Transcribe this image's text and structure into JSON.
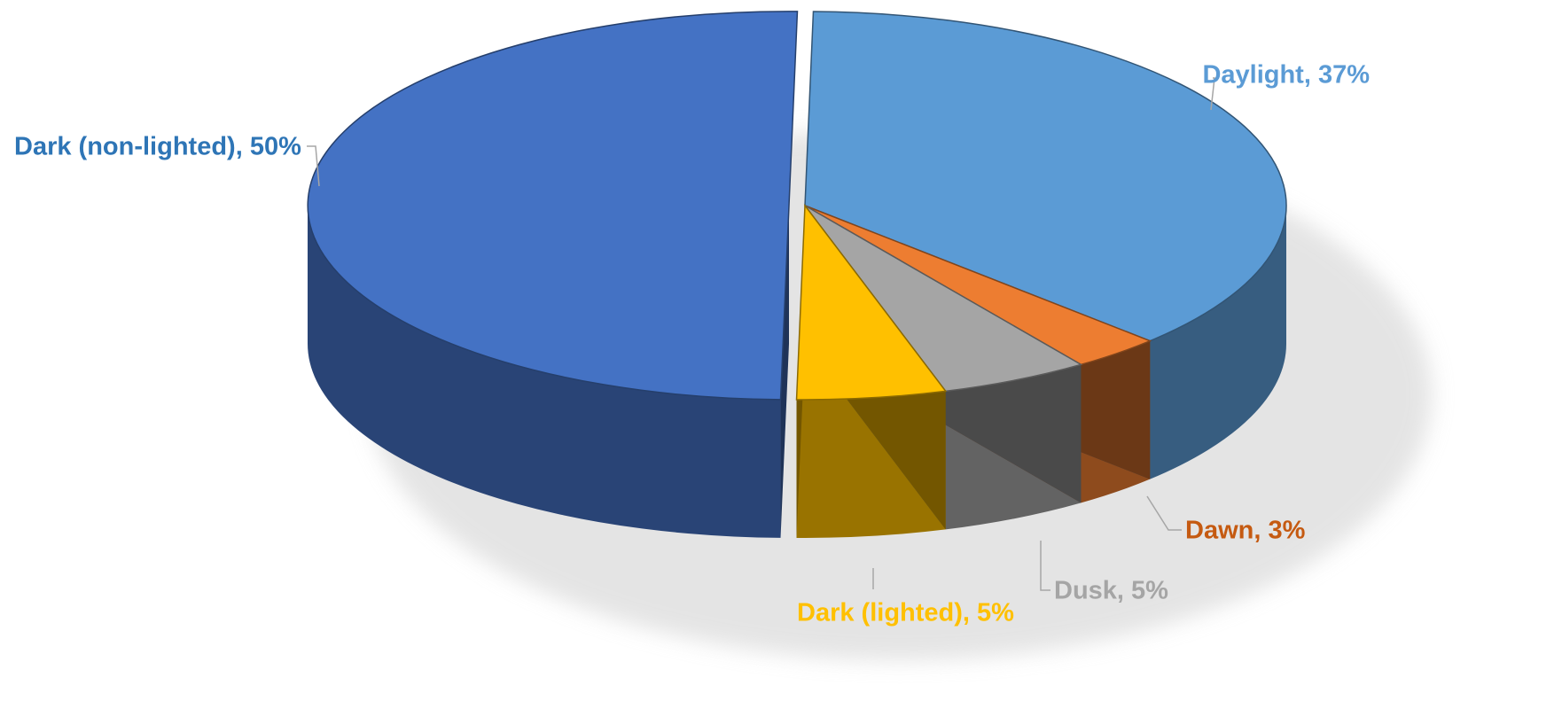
{
  "chart_data": {
    "type": "pie",
    "style": "3d-exploded",
    "legend": "none",
    "categories": [
      "Daylight",
      "Dawn",
      "Dusk",
      "Dark (lighted)",
      "Dark (non-lighted)"
    ],
    "values": [
      37,
      3,
      5,
      5,
      50
    ],
    "unit": "%",
    "data_labels": [
      "Daylight, 37%",
      "Dawn, 3%",
      "Dusk, 5%",
      "Dark (lighted), 5%",
      "Dark (non-lighted), 50%"
    ],
    "exploded": [
      "Dark (non-lighted)"
    ],
    "colors": [
      "#5B9BD5",
      "#ED7D31",
      "#A5A5A5",
      "#FFC000",
      "#4472C4"
    ],
    "label_colors": [
      "#5B9BD5",
      "#C55A11",
      "#A5A5A5",
      "#FFC000",
      "#2E75B6"
    ]
  }
}
